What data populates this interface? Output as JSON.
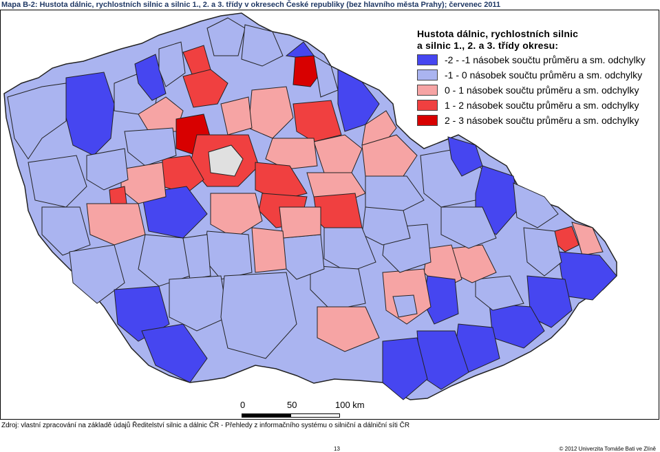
{
  "title": "Mapa B-2: Hustota dálnic, rychlostních silnic a silnic 1., 2. a 3. třídy v okresech České republiky (bez hlavního města Prahy); červenec 2011",
  "colors": {
    "class_neg2": "#4646f0",
    "class_neg1": "#aab4f0",
    "class_pos1": "#f6a4a4",
    "class_pos2": "#f04040",
    "class_pos3": "#d80000",
    "no_data": "#e0e0e0",
    "border": "#222222"
  },
  "legend": {
    "title_line1": "Hustota dálnic, rychlostních silnic",
    "title_line2": "a silnic 1., 2. a 3. třídy okresu:",
    "items": [
      {
        "label": "-2 - -1 násobek součtu průměru a sm. odchylky",
        "color": "#4646f0"
      },
      {
        "label": "-1 - 0 násobek součtu průměru a sm. odchylky",
        "color": "#aab4f0"
      },
      {
        "label": "0 - 1 násobek součtu průměru a sm. odchylky",
        "color": "#f6a4a4"
      },
      {
        "label": "1 - 2 násobek součtu průměru a sm. odchylky",
        "color": "#f04040"
      },
      {
        "label": "2 - 3 násobek součtu průměru a sm. odchylky",
        "color": "#d80000"
      }
    ]
  },
  "scale": {
    "label_0": "0",
    "label_50": "50",
    "label_100": "100 km"
  },
  "source": "Zdroj: vlastní zpracování na základě údajů Ředitelství silnic a dálnic ČR - Přehledy z informačního systému o silniční a dálniční síti ČR",
  "page_number": "13",
  "copyright": "© 2012 Univerzita Tomáše Bati ve Zlíně"
}
